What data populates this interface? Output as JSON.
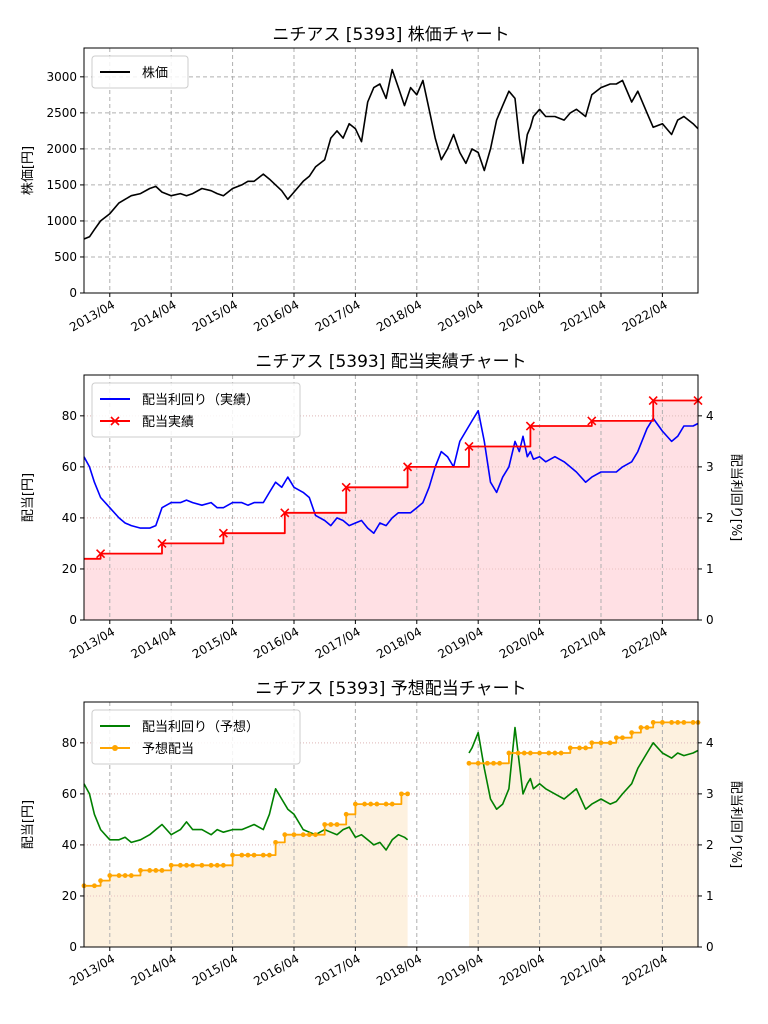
{
  "xticks": [
    "2013/04",
    "2014/04",
    "2015/04",
    "2016/04",
    "2017/04",
    "2018/04",
    "2019/04",
    "2020/04",
    "2021/04",
    "2022/04"
  ],
  "chart_data": [
    {
      "type": "line",
      "title": "ニチアス [5393]  株価チャート",
      "ylabel": "株価[円]",
      "xlim": [
        2012.83,
        2022.83
      ],
      "ylim": [
        0,
        3400
      ],
      "yticks": [
        0,
        500,
        1000,
        1500,
        2000,
        2500,
        3000
      ],
      "grid": true,
      "legend": "top-left",
      "series": [
        {
          "name": "株価",
          "color": "#000000",
          "x": [
            2012.83,
            2012.92,
            2013.0,
            2013.1,
            2013.25,
            2013.4,
            2013.5,
            2013.6,
            2013.75,
            2013.9,
            2014.0,
            2014.1,
            2014.25,
            2014.4,
            2014.5,
            2014.6,
            2014.75,
            2014.9,
            2015.0,
            2015.1,
            2015.25,
            2015.4,
            2015.5,
            2015.6,
            2015.75,
            2015.85,
            2015.95,
            2016.05,
            2016.15,
            2016.25,
            2016.4,
            2016.5,
            2016.6,
            2016.75,
            2016.85,
            2016.95,
            2017.05,
            2017.15,
            2017.25,
            2017.35,
            2017.45,
            2017.55,
            2017.65,
            2017.75,
            2017.85,
            2017.95,
            2018.05,
            2018.15,
            2018.25,
            2018.35,
            2018.45,
            2018.55,
            2018.65,
            2018.75,
            2018.85,
            2018.95,
            2019.05,
            2019.15,
            2019.25,
            2019.35,
            2019.45,
            2019.55,
            2019.65,
            2019.75,
            2019.85,
            2019.92,
            2019.98,
            2020.05,
            2020.1,
            2020.15,
            2020.25,
            2020.35,
            2020.5,
            2020.65,
            2020.75,
            2020.85,
            2021.0,
            2021.1,
            2021.25,
            2021.4,
            2021.5,
            2021.6,
            2021.75,
            2021.85,
            2022.0,
            2022.1,
            2022.25,
            2022.4,
            2022.5,
            2022.6,
            2022.75,
            2022.83
          ],
          "values": [
            750,
            780,
            880,
            1000,
            1100,
            1250,
            1300,
            1350,
            1380,
            1450,
            1480,
            1400,
            1350,
            1380,
            1350,
            1380,
            1450,
            1420,
            1380,
            1350,
            1450,
            1500,
            1550,
            1550,
            1650,
            1580,
            1500,
            1420,
            1300,
            1400,
            1550,
            1620,
            1750,
            1850,
            2150,
            2250,
            2150,
            2350,
            2280,
            2100,
            2650,
            2850,
            2900,
            2700,
            3100,
            2850,
            2600,
            2850,
            2750,
            2950,
            2550,
            2150,
            1850,
            2000,
            2200,
            1950,
            1800,
            2000,
            1950,
            1700,
            2000,
            2400,
            2600,
            2800,
            2700,
            2150,
            1800,
            2200,
            2300,
            2450,
            2550,
            2450,
            2450,
            2400,
            2500,
            2550,
            2450,
            2750,
            2850,
            2900,
            2900,
            2950,
            2650,
            2800,
            2500,
            2300,
            2350,
            2200,
            2400,
            2450,
            2350,
            2280
          ]
        }
      ]
    },
    {
      "type": "line",
      "title": "ニチアス [5393]  配当実績チャート",
      "ylabel": "配当[円]",
      "y2label": "配当利回り[%]",
      "xlim": [
        2012.83,
        2022.83
      ],
      "ylim": [
        0,
        96
      ],
      "y2lim": [
        0,
        4.8
      ],
      "yticks": [
        0,
        20,
        40,
        60,
        80
      ],
      "y2ticks": [
        0,
        1,
        2,
        3,
        4
      ],
      "grid": true,
      "legend": "top-left",
      "series": [
        {
          "name": "配当利回り（実績）",
          "color": "#0000ff",
          "axis": "right",
          "x": [
            2012.83,
            2012.92,
            2013.0,
            2013.1,
            2013.25,
            2013.4,
            2013.5,
            2013.6,
            2013.75,
            2013.9,
            2014.0,
            2014.1,
            2014.25,
            2014.4,
            2014.5,
            2014.6,
            2014.75,
            2014.9,
            2015.0,
            2015.1,
            2015.25,
            2015.4,
            2015.5,
            2015.6,
            2015.75,
            2015.85,
            2015.95,
            2016.05,
            2016.15,
            2016.25,
            2016.4,
            2016.5,
            2016.6,
            2016.75,
            2016.85,
            2016.95,
            2017.05,
            2017.15,
            2017.25,
            2017.35,
            2017.45,
            2017.55,
            2017.65,
            2017.75,
            2017.85,
            2017.95,
            2018.05,
            2018.15,
            2018.25,
            2018.35,
            2018.45,
            2018.55,
            2018.65,
            2018.75,
            2018.85,
            2018.95,
            2019.05,
            2019.15,
            2019.25,
            2019.35,
            2019.45,
            2019.55,
            2019.65,
            2019.75,
            2019.85,
            2019.92,
            2019.98,
            2020.05,
            2020.1,
            2020.15,
            2020.25,
            2020.35,
            2020.5,
            2020.65,
            2020.75,
            2020.85,
            2021.0,
            2021.1,
            2021.25,
            2021.4,
            2021.5,
            2021.6,
            2021.75,
            2021.85,
            2022.0,
            2022.1,
            2022.25,
            2022.4,
            2022.5,
            2022.6,
            2022.75,
            2022.83
          ],
          "values": [
            3.2,
            3.0,
            2.7,
            2.4,
            2.2,
            2.0,
            1.9,
            1.85,
            1.8,
            1.8,
            1.85,
            2.2,
            2.3,
            2.3,
            2.35,
            2.3,
            2.25,
            2.3,
            2.2,
            2.2,
            2.3,
            2.3,
            2.25,
            2.3,
            2.3,
            2.5,
            2.7,
            2.6,
            2.8,
            2.6,
            2.5,
            2.4,
            2.05,
            1.95,
            1.85,
            2.0,
            1.95,
            1.85,
            1.9,
            1.95,
            1.8,
            1.7,
            1.9,
            1.85,
            2.0,
            2.1,
            2.1,
            2.1,
            2.2,
            2.3,
            2.6,
            3.0,
            3.3,
            3.2,
            3.0,
            3.5,
            3.7,
            3.9,
            4.1,
            3.5,
            2.7,
            2.5,
            2.8,
            3.0,
            3.5,
            3.3,
            3.6,
            3.2,
            3.3,
            3.15,
            3.2,
            3.1,
            3.2,
            3.1,
            3.0,
            2.9,
            2.7,
            2.8,
            2.9,
            2.9,
            2.9,
            3.0,
            3.1,
            3.3,
            3.75,
            3.95,
            3.7,
            3.5,
            3.6,
            3.8,
            3.8,
            3.85
          ]
        },
        {
          "name": "配当実績",
          "color": "#ff0000",
          "axis": "left",
          "x": [
            2012.83,
            2013.1,
            2014.1,
            2015.1,
            2016.1,
            2017.1,
            2018.1,
            2019.1,
            2020.1,
            2021.1,
            2022.1,
            2022.83
          ],
          "values": [
            24,
            26,
            30,
            34,
            42,
            52,
            60,
            68,
            76,
            78,
            86,
            86
          ],
          "markers": [
            false,
            true,
            true,
            true,
            true,
            true,
            true,
            true,
            true,
            true,
            true,
            true
          ]
        }
      ]
    },
    {
      "type": "line",
      "title": "ニチアス [5393]  予想配当チャート",
      "ylabel": "配当[円]",
      "y2label": "配当利回り[%]",
      "xlim": [
        2012.83,
        2022.83
      ],
      "ylim": [
        0,
        96
      ],
      "y2lim": [
        0,
        4.8
      ],
      "yticks": [
        0,
        20,
        40,
        60,
        80
      ],
      "y2ticks": [
        0,
        1,
        2,
        3,
        4
      ],
      "grid": true,
      "legend": "top-left",
      "series": [
        {
          "name": "配当利回り（予想）",
          "color": "#008000",
          "axis": "right",
          "segments": [
            {
              "x": [
                2012.83,
                2012.92,
                2013.0,
                2013.1,
                2013.25,
                2013.4,
                2013.5,
                2013.6,
                2013.75,
                2013.9,
                2014.0,
                2014.1,
                2014.25,
                2014.4,
                2014.5,
                2014.6,
                2014.75,
                2014.9,
                2015.0,
                2015.1,
                2015.25,
                2015.4,
                2015.5,
                2015.6,
                2015.75,
                2015.85,
                2015.95,
                2016.05,
                2016.15,
                2016.25,
                2016.4,
                2016.5,
                2016.6,
                2016.75,
                2016.85,
                2016.95,
                2017.05,
                2017.15,
                2017.25,
                2017.35,
                2017.45,
                2017.55,
                2017.65,
                2017.75,
                2017.85,
                2017.95,
                2018.05,
                2018.1
              ],
              "values": [
                3.2,
                3.0,
                2.6,
                2.3,
                2.1,
                2.1,
                2.15,
                2.05,
                2.1,
                2.2,
                2.3,
                2.4,
                2.2,
                2.3,
                2.45,
                2.3,
                2.3,
                2.2,
                2.3,
                2.25,
                2.3,
                2.3,
                2.35,
                2.4,
                2.3,
                2.6,
                3.1,
                2.9,
                2.7,
                2.6,
                2.3,
                2.25,
                2.2,
                2.3,
                2.25,
                2.2,
                2.3,
                2.35,
                2.15,
                2.2,
                2.1,
                2.0,
                2.05,
                1.9,
                2.1,
                2.2,
                2.15,
                2.1
              ]
            },
            {
              "x": [
                2019.1,
                2019.15,
                2019.25,
                2019.35,
                2019.45,
                2019.55,
                2019.65,
                2019.75,
                2019.85,
                2019.92,
                2019.98,
                2020.05,
                2020.1,
                2020.15,
                2020.25,
                2020.35,
                2020.5,
                2020.65,
                2020.75,
                2020.85,
                2021.0,
                2021.1,
                2021.25,
                2021.4,
                2021.5,
                2021.6,
                2021.75,
                2021.85,
                2022.0,
                2022.1,
                2022.25,
                2022.4,
                2022.5,
                2022.6,
                2022.75,
                2022.83
              ],
              "values": [
                3.8,
                3.9,
                4.2,
                3.5,
                2.9,
                2.7,
                2.8,
                3.1,
                4.3,
                3.6,
                3.0,
                3.2,
                3.3,
                3.1,
                3.2,
                3.1,
                3.0,
                2.9,
                3.0,
                3.1,
                2.7,
                2.8,
                2.9,
                2.8,
                2.85,
                3.0,
                3.2,
                3.5,
                3.8,
                4.0,
                3.8,
                3.7,
                3.8,
                3.75,
                3.8,
                3.85
              ]
            }
          ]
        },
        {
          "name": "予想配当",
          "color": "#ffa500",
          "axis": "left",
          "segments": [
            {
              "x": [
                2012.83,
                2013.0,
                2013.1,
                2013.25,
                2013.4,
                2013.5,
                2013.6,
                2013.75,
                2013.9,
                2014.0,
                2014.1,
                2014.25,
                2014.4,
                2014.5,
                2014.6,
                2014.75,
                2014.9,
                2015.0,
                2015.1,
                2015.25,
                2015.4,
                2015.5,
                2015.6,
                2015.75,
                2015.85,
                2015.95,
                2016.1,
                2016.25,
                2016.4,
                2016.5,
                2016.6,
                2016.75,
                2016.85,
                2016.95,
                2017.1,
                2017.25,
                2017.4,
                2017.5,
                2017.6,
                2017.75,
                2017.85,
                2018.0,
                2018.1
              ],
              "values": [
                24,
                24,
                26,
                28,
                28,
                28,
                28,
                30,
                30,
                30,
                30,
                32,
                32,
                32,
                32,
                32,
                32,
                32,
                32,
                36,
                36,
                36,
                36,
                36,
                36,
                41,
                44,
                44,
                44,
                44,
                44,
                48,
                48,
                48,
                52,
                56,
                56,
                56,
                56,
                56,
                56,
                60,
                60
              ]
            },
            {
              "x": [
                2019.1,
                2019.25,
                2019.4,
                2019.5,
                2019.6,
                2019.75,
                2019.9,
                2020.0,
                2020.1,
                2020.25,
                2020.4,
                2020.5,
                2020.6,
                2020.75,
                2020.9,
                2021.0,
                2021.1,
                2021.25,
                2021.4,
                2021.5,
                2021.6,
                2021.75,
                2021.9,
                2022.0,
                2022.1,
                2022.25,
                2022.4,
                2022.5,
                2022.6,
                2022.75,
                2022.83
              ],
              "values": [
                72,
                72,
                72,
                72,
                72,
                76,
                76,
                76,
                76,
                76,
                76,
                76,
                76,
                78,
                78,
                78,
                80,
                80,
                80,
                82,
                82,
                84,
                86,
                86,
                88,
                88,
                88,
                88,
                88,
                88,
                88
              ]
            }
          ]
        }
      ]
    }
  ]
}
